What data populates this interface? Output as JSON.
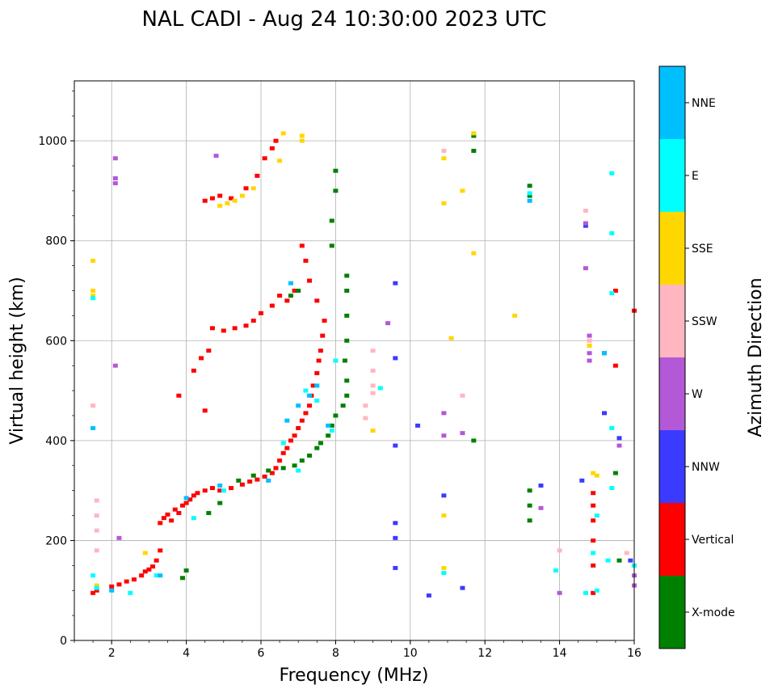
{
  "chart_data": {
    "type": "scatter",
    "title": "NAL CADI - Aug 24 10:30:00 2023 UTC",
    "xlabel": "Frequency (MHz)",
    "ylabel": "Virtual height (km)",
    "xlim": [
      1,
      16
    ],
    "ylim": [
      0,
      1120
    ],
    "xticks": [
      2,
      4,
      6,
      8,
      10,
      12,
      14,
      16
    ],
    "yticks": [
      0,
      200,
      400,
      600,
      800,
      1000
    ],
    "grid": true,
    "colorbar": {
      "label": "Azimuth Direction",
      "categories": [
        "X-mode",
        "Vertical",
        "NNW",
        "W",
        "SSW",
        "SSE",
        "E",
        "NNE"
      ],
      "colors": [
        "#008000",
        "#ff0000",
        "#3b3bff",
        "#b358d6",
        "#ffb6c1",
        "#ffd700",
        "#00ffff",
        "#00bfff"
      ]
    },
    "series": [
      {
        "name": "Vertical",
        "points": [
          [
            1.5,
            95
          ],
          [
            1.6,
            100
          ],
          [
            2.0,
            108
          ],
          [
            2.2,
            112
          ],
          [
            2.4,
            118
          ],
          [
            2.6,
            122
          ],
          [
            2.8,
            130
          ],
          [
            2.9,
            138
          ],
          [
            3.0,
            142
          ],
          [
            3.1,
            148
          ],
          [
            3.2,
            160
          ],
          [
            3.3,
            180
          ],
          [
            3.3,
            235
          ],
          [
            3.4,
            245
          ],
          [
            3.5,
            252
          ],
          [
            3.6,
            240
          ],
          [
            3.7,
            262
          ],
          [
            3.8,
            255
          ],
          [
            3.9,
            270
          ],
          [
            4.0,
            275
          ],
          [
            4.1,
            282
          ],
          [
            4.2,
            290
          ],
          [
            4.3,
            295
          ],
          [
            4.5,
            300
          ],
          [
            4.7,
            305
          ],
          [
            4.9,
            300
          ],
          [
            5.2,
            305
          ],
          [
            5.5,
            312
          ],
          [
            5.7,
            318
          ],
          [
            5.9,
            322
          ],
          [
            6.1,
            328
          ],
          [
            6.3,
            335
          ],
          [
            6.4,
            345
          ],
          [
            6.5,
            360
          ],
          [
            6.6,
            375
          ],
          [
            6.7,
            385
          ],
          [
            6.8,
            400
          ],
          [
            6.9,
            410
          ],
          [
            7.0,
            425
          ],
          [
            7.1,
            440
          ],
          [
            7.2,
            455
          ],
          [
            7.3,
            470
          ],
          [
            7.35,
            490
          ],
          [
            7.4,
            510
          ],
          [
            7.5,
            535
          ],
          [
            7.55,
            560
          ],
          [
            7.6,
            580
          ],
          [
            7.65,
            610
          ],
          [
            7.7,
            640
          ],
          [
            7.5,
            680
          ],
          [
            7.3,
            720
          ],
          [
            7.2,
            760
          ],
          [
            7.1,
            790
          ],
          [
            6.9,
            700
          ],
          [
            6.7,
            680
          ],
          [
            6.5,
            690
          ],
          [
            6.3,
            670
          ],
          [
            6.0,
            655
          ],
          [
            5.8,
            640
          ],
          [
            5.6,
            630
          ],
          [
            5.3,
            625
          ],
          [
            5.0,
            620
          ],
          [
            4.7,
            625
          ],
          [
            4.5,
            880
          ],
          [
            4.7,
            885
          ],
          [
            4.9,
            890
          ],
          [
            5.2,
            885
          ],
          [
            5.6,
            905
          ],
          [
            5.9,
            930
          ],
          [
            6.1,
            965
          ],
          [
            6.3,
            985
          ],
          [
            6.4,
            1000
          ],
          [
            4.5,
            460
          ],
          [
            4.2,
            540
          ],
          [
            4.4,
            565
          ],
          [
            4.6,
            580
          ],
          [
            3.8,
            490
          ],
          [
            14.9,
            295
          ],
          [
            14.9,
            270
          ],
          [
            14.9,
            240
          ],
          [
            14.9,
            200
          ],
          [
            14.9,
            150
          ],
          [
            14.9,
            95
          ],
          [
            16.0,
            660
          ],
          [
            15.5,
            700
          ],
          [
            15.5,
            550
          ]
        ]
      },
      {
        "name": "X-mode",
        "points": [
          [
            5.4,
            320
          ],
          [
            5.8,
            330
          ],
          [
            6.2,
            340
          ],
          [
            6.6,
            345
          ],
          [
            6.9,
            350
          ],
          [
            7.1,
            360
          ],
          [
            7.3,
            370
          ],
          [
            7.5,
            385
          ],
          [
            7.6,
            395
          ],
          [
            7.8,
            410
          ],
          [
            7.9,
            430
          ],
          [
            8.0,
            450
          ],
          [
            8.2,
            470
          ],
          [
            8.3,
            490
          ],
          [
            8.3,
            520
          ],
          [
            8.25,
            560
          ],
          [
            8.3,
            600
          ],
          [
            8.3,
            650
          ],
          [
            8.3,
            700
          ],
          [
            8.3,
            730
          ],
          [
            7.9,
            790
          ],
          [
            7.9,
            840
          ],
          [
            8.0,
            900
          ],
          [
            8.0,
            940
          ],
          [
            7.0,
            700
          ],
          [
            6.8,
            690
          ],
          [
            4.6,
            255
          ],
          [
            4.9,
            275
          ],
          [
            3.9,
            125
          ],
          [
            4.0,
            140
          ],
          [
            11.7,
            1010
          ],
          [
            11.7,
            980
          ],
          [
            11.7,
            400
          ],
          [
            13.2,
            910
          ],
          [
            13.2,
            890
          ],
          [
            13.2,
            300
          ],
          [
            13.2,
            270
          ],
          [
            13.2,
            240
          ],
          [
            15.5,
            335
          ],
          [
            15.6,
            160
          ]
        ]
      },
      {
        "name": "NNW",
        "points": [
          [
            9.6,
            715
          ],
          [
            9.6,
            565
          ],
          [
            9.6,
            390
          ],
          [
            9.6,
            235
          ],
          [
            9.6,
            205
          ],
          [
            9.6,
            145
          ],
          [
            10.2,
            430
          ],
          [
            10.5,
            90
          ],
          [
            10.9,
            290
          ],
          [
            11.4,
            105
          ],
          [
            13.5,
            310
          ],
          [
            14.6,
            320
          ],
          [
            14.7,
            830
          ],
          [
            15.2,
            575
          ],
          [
            15.2,
            455
          ],
          [
            15.6,
            405
          ],
          [
            15.9,
            160
          ]
        ]
      },
      {
        "name": "W",
        "points": [
          [
            2.1,
            965
          ],
          [
            2.1,
            925
          ],
          [
            2.1,
            915
          ],
          [
            2.1,
            550
          ],
          [
            2.2,
            205
          ],
          [
            4.8,
            970
          ],
          [
            9.4,
            635
          ],
          [
            10.9,
            455
          ],
          [
            10.9,
            410
          ],
          [
            11.4,
            415
          ],
          [
            13.5,
            265
          ],
          [
            14.0,
            95
          ],
          [
            14.7,
            835
          ],
          [
            14.7,
            745
          ],
          [
            14.8,
            610
          ],
          [
            14.8,
            575
          ],
          [
            14.8,
            560
          ],
          [
            15.6,
            390
          ],
          [
            16.0,
            130
          ],
          [
            16.0,
            110
          ]
        ]
      },
      {
        "name": "SSW",
        "points": [
          [
            1.5,
            470
          ],
          [
            1.6,
            280
          ],
          [
            1.6,
            250
          ],
          [
            1.6,
            220
          ],
          [
            1.6,
            180
          ],
          [
            9.0,
            580
          ],
          [
            9.0,
            540
          ],
          [
            9.0,
            510
          ],
          [
            9.0,
            495
          ],
          [
            8.8,
            470
          ],
          [
            8.8,
            445
          ],
          [
            10.9,
            980
          ],
          [
            11.4,
            490
          ],
          [
            14.0,
            180
          ],
          [
            14.7,
            860
          ],
          [
            14.8,
            600
          ],
          [
            15.8,
            175
          ]
        ]
      },
      {
        "name": "SSE",
        "points": [
          [
            1.5,
            760
          ],
          [
            1.5,
            700
          ],
          [
            1.5,
            690
          ],
          [
            1.6,
            110
          ],
          [
            2.9,
            175
          ],
          [
            4.9,
            870
          ],
          [
            5.1,
            875
          ],
          [
            5.3,
            880
          ],
          [
            5.5,
            890
          ],
          [
            5.8,
            905
          ],
          [
            6.5,
            960
          ],
          [
            6.6,
            1015
          ],
          [
            7.1,
            1010
          ],
          [
            7.1,
            1000
          ],
          [
            9.0,
            420
          ],
          [
            10.9,
            965
          ],
          [
            10.9,
            875
          ],
          [
            10.9,
            250
          ],
          [
            10.9,
            145
          ],
          [
            11.1,
            605
          ],
          [
            11.4,
            900
          ],
          [
            11.7,
            1015
          ],
          [
            11.7,
            775
          ],
          [
            12.8,
            650
          ],
          [
            14.8,
            590
          ],
          [
            14.9,
            335
          ],
          [
            15.0,
            330
          ]
        ]
      },
      {
        "name": "E",
        "points": [
          [
            1.5,
            685
          ],
          [
            1.5,
            130
          ],
          [
            1.6,
            105
          ],
          [
            2.5,
            95
          ],
          [
            3.2,
            130
          ],
          [
            4.2,
            245
          ],
          [
            5.0,
            300
          ],
          [
            6.6,
            395
          ],
          [
            7.0,
            340
          ],
          [
            7.2,
            500
          ],
          [
            7.5,
            480
          ],
          [
            7.9,
            420
          ],
          [
            8.0,
            560
          ],
          [
            9.2,
            505
          ],
          [
            10.9,
            135
          ],
          [
            13.9,
            140
          ],
          [
            13.2,
            895
          ],
          [
            14.7,
            95
          ],
          [
            14.9,
            175
          ],
          [
            15.0,
            250
          ],
          [
            15.0,
            100
          ],
          [
            15.4,
            935
          ],
          [
            15.4,
            815
          ],
          [
            15.4,
            695
          ],
          [
            15.4,
            425
          ],
          [
            15.4,
            305
          ],
          [
            15.3,
            160
          ],
          [
            16.0,
            150
          ]
        ]
      },
      {
        "name": "NNE",
        "points": [
          [
            1.5,
            425
          ],
          [
            2.0,
            100
          ],
          [
            3.3,
            130
          ],
          [
            4.0,
            285
          ],
          [
            4.9,
            310
          ],
          [
            6.2,
            320
          ],
          [
            6.7,
            440
          ],
          [
            7.0,
            470
          ],
          [
            7.3,
            490
          ],
          [
            7.5,
            510
          ],
          [
            7.8,
            430
          ],
          [
            6.8,
            715
          ],
          [
            13.2,
            880
          ],
          [
            15.2,
            575
          ]
        ]
      }
    ]
  }
}
